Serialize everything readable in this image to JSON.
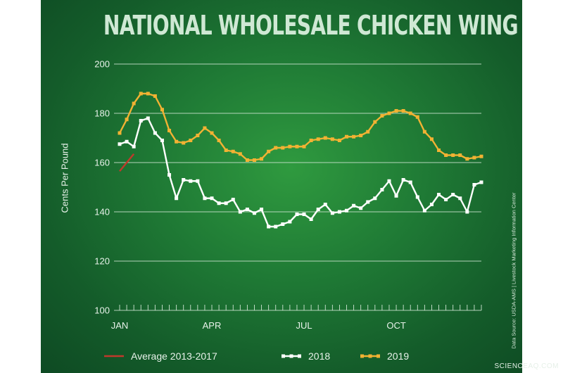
{
  "title": "NATIONAL WHOLESALE CHICKEN WING PRICES",
  "ylabel": "Cents Per Pound",
  "source": "Data Source:  USDA-AMS | Livestock Marketing Information Center",
  "watermark": "SCIENCEAQ.COM",
  "colors": {
    "avg": "#c0392b",
    "s2018": "#ffffff",
    "s2019": "#f2b233",
    "grid": "#cfe5d3",
    "axis_text": "#e8f2ea"
  },
  "chart_data": {
    "type": "line",
    "ylim": [
      100,
      200
    ],
    "yticks": [
      100,
      120,
      140,
      160,
      180,
      200
    ],
    "x_weeks": 52,
    "xticks": [
      {
        "label": "JAN",
        "week": 1
      },
      {
        "label": "APR",
        "week": 14
      },
      {
        "label": "JUL",
        "week": 27
      },
      {
        "label": "OCT",
        "week": 40
      }
    ],
    "grid": true,
    "legend_position": "bottom",
    "series": [
      {
        "name": "Average 2013-2017",
        "color_key": "avg",
        "markers": false,
        "start_week": 1,
        "values": [
          156.5,
          160,
          163.5
        ]
      },
      {
        "name": "2018",
        "color_key": "s2018",
        "markers": true,
        "start_week": 1,
        "values": [
          167.5,
          168.5,
          166.5,
          177,
          178,
          172,
          169,
          155,
          145.5,
          153,
          152.5,
          152.5,
          145.5,
          145.5,
          143.5,
          143.5,
          145,
          140,
          141,
          139.5,
          141,
          134,
          134,
          135,
          136,
          139,
          139,
          137,
          141,
          143,
          139.5,
          140,
          140.5,
          142.5,
          141.5,
          144,
          145.5,
          149,
          152.5,
          146.5,
          153,
          152,
          146,
          140.5,
          143,
          147,
          145,
          147,
          145.5,
          140,
          151,
          152
        ]
      },
      {
        "name": "2019",
        "color_key": "s2019",
        "markers": true,
        "start_week": 1,
        "values": [
          172,
          177.5,
          184,
          188,
          188,
          187,
          181.5,
          173,
          168.5,
          168,
          169,
          171,
          174,
          172,
          169,
          165,
          164.5,
          163.5,
          161,
          161,
          161.5,
          164.5,
          166,
          166,
          166.5,
          166.5,
          166.5,
          169,
          169.5,
          170,
          169.5,
          169,
          170.5,
          170.5,
          171,
          172.5,
          176.5,
          179,
          180,
          181,
          181,
          180,
          178.5,
          172.5,
          169.5,
          165,
          163,
          163,
          163,
          161.5,
          162,
          162.5
        ]
      }
    ]
  }
}
